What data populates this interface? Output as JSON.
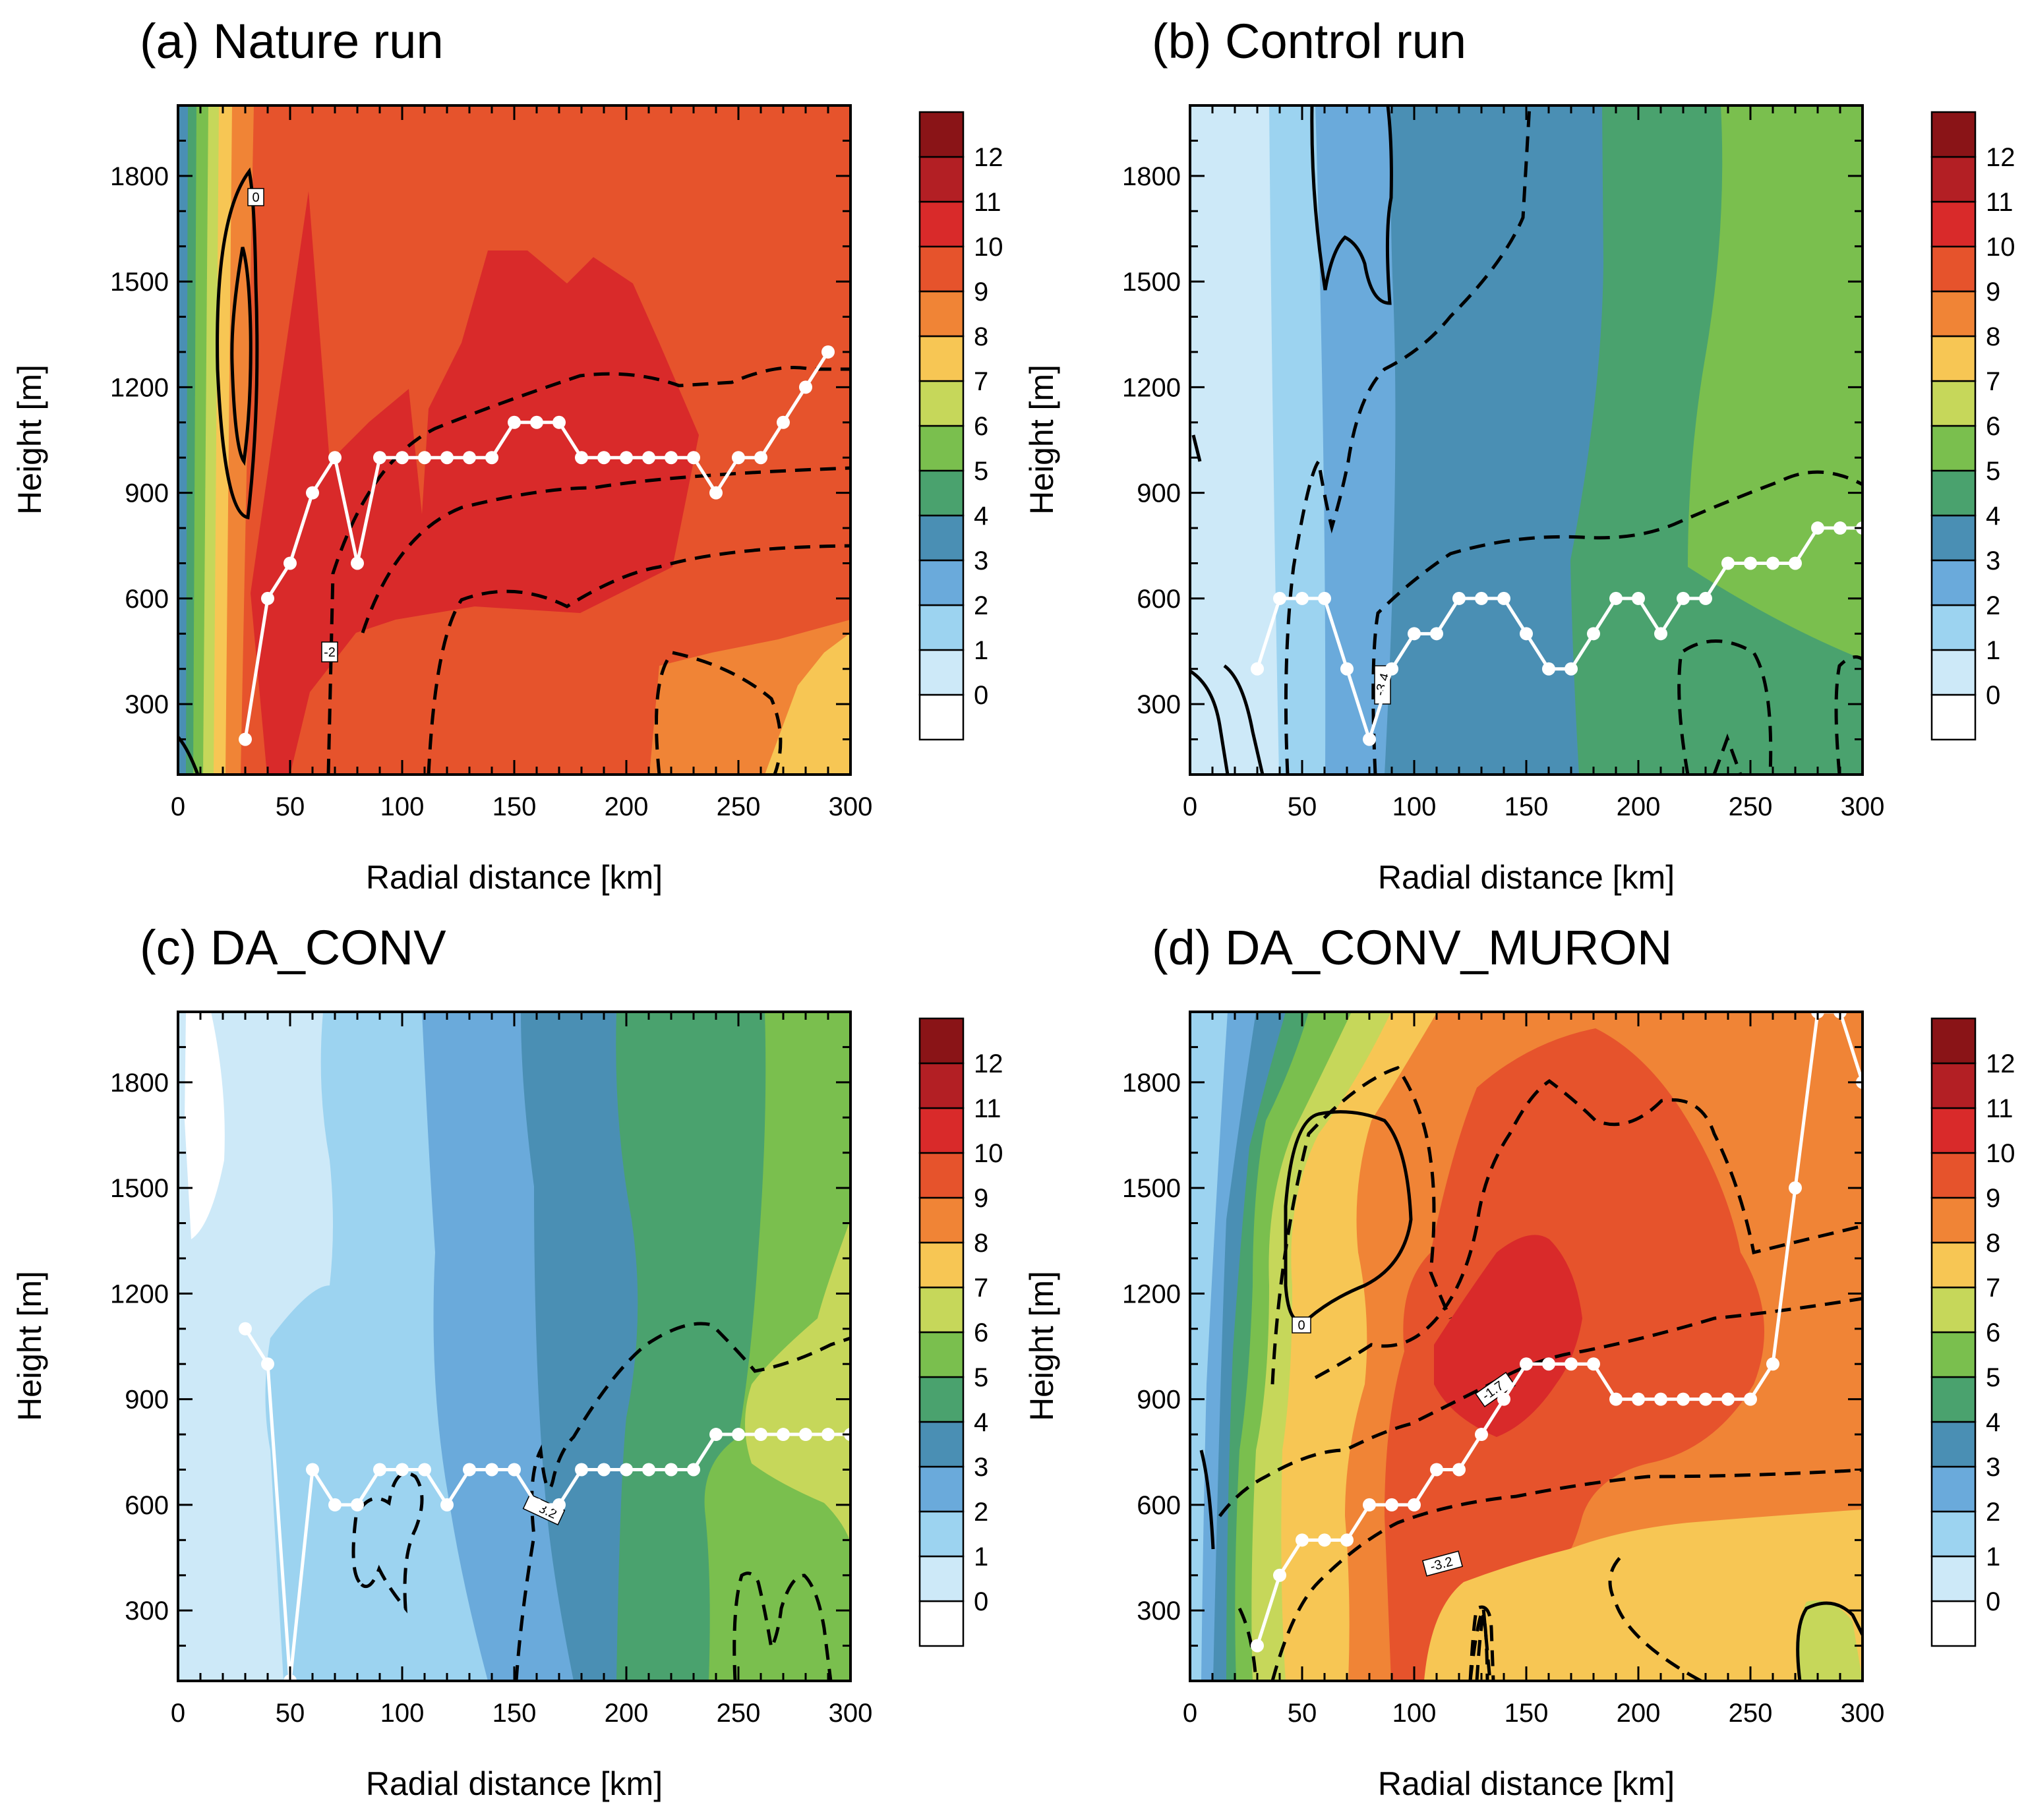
{
  "figure": {
    "colorbar_levels": [
      "0",
      "1",
      "2",
      "3",
      "4",
      "5",
      "6",
      "7",
      "8",
      "9",
      "10",
      "11",
      "12"
    ],
    "colorbar_colors": [
      "#ffffff",
      "#cde9f8",
      "#9cd3f0",
      "#6aaadb",
      "#4a8fb4",
      "#4aa26e",
      "#7abf4e",
      "#c6d75a",
      "#f7c654",
      "#f08436",
      "#e6532c",
      "#d92a2a",
      "#b31f24",
      "#8a1417"
    ]
  },
  "chart_data": [
    {
      "id": "a",
      "type": "contour",
      "title": "(a) Nature run",
      "xlabel": "Radial distance [km]",
      "ylabel": "Height [m]",
      "xlim": [
        0,
        300
      ],
      "ylim": [
        100,
        2000
      ],
      "xticks": [
        "0",
        "50",
        "100",
        "150",
        "200",
        "250",
        "300"
      ],
      "yticks": [
        "300",
        "600",
        "900",
        "1200",
        "1500",
        "1800"
      ],
      "contour_labels": [
        "0",
        "-2"
      ],
      "pbl_height_line": {
        "x": [
          30,
          40,
          50,
          60,
          70,
          80,
          90,
          100,
          110,
          120,
          130,
          140,
          150,
          160,
          170,
          180,
          190,
          200,
          210,
          220,
          230,
          240,
          250,
          260,
          270,
          280,
          290
        ],
        "y": [
          200,
          600,
          700,
          900,
          1000,
          700,
          1000,
          1000,
          1000,
          1000,
          1000,
          1000,
          1100,
          1100,
          1100,
          1000,
          1000,
          1000,
          1000,
          1000,
          1000,
          900,
          1000,
          1000,
          1100,
          1200,
          1300
        ]
      }
    },
    {
      "id": "b",
      "type": "contour",
      "title": "(b) Control run",
      "xlabel": "Radial distance [km]",
      "ylabel": "Height [m]",
      "xlim": [
        0,
        300
      ],
      "ylim": [
        100,
        2000
      ],
      "xticks": [
        "0",
        "50",
        "100",
        "150",
        "200",
        "250",
        "300"
      ],
      "yticks": [
        "300",
        "600",
        "900",
        "1200",
        "1500",
        "1800"
      ],
      "contour_labels": [
        "-3.4"
      ],
      "pbl_height_line": {
        "x": [
          30,
          40,
          50,
          60,
          70,
          80,
          90,
          100,
          110,
          120,
          130,
          140,
          150,
          160,
          170,
          180,
          190,
          200,
          210,
          220,
          230,
          240,
          250,
          260,
          270,
          280,
          290,
          300
        ],
        "y": [
          400,
          600,
          600,
          600,
          400,
          200,
          400,
          500,
          500,
          600,
          600,
          600,
          500,
          400,
          400,
          500,
          600,
          600,
          500,
          600,
          600,
          700,
          700,
          700,
          700,
          800,
          800,
          800
        ]
      }
    },
    {
      "id": "c",
      "type": "contour",
      "title": "(c) DA_CONV",
      "xlabel": "Radial distance [km]",
      "ylabel": "Height [m]",
      "xlim": [
        0,
        300
      ],
      "ylim": [
        100,
        2000
      ],
      "xticks": [
        "0",
        "50",
        "100",
        "150",
        "200",
        "250",
        "300"
      ],
      "yticks": [
        "300",
        "600",
        "900",
        "1200",
        "1500",
        "1800"
      ],
      "contour_labels": [
        "-3.2"
      ],
      "pbl_height_line": {
        "x": [
          30,
          40,
          50,
          60,
          70,
          80,
          90,
          100,
          110,
          120,
          130,
          140,
          150,
          160,
          170,
          180,
          190,
          200,
          210,
          220,
          230,
          240,
          250,
          260,
          270,
          280,
          290,
          300
        ],
        "y": [
          1100,
          1000,
          100,
          700,
          600,
          600,
          700,
          700,
          700,
          600,
          700,
          700,
          700,
          600,
          600,
          700,
          700,
          700,
          700,
          700,
          700,
          800,
          800,
          800,
          800,
          800,
          800,
          800
        ]
      }
    },
    {
      "id": "d",
      "type": "contour",
      "title": "(d) DA_CONV_MURON",
      "xlabel": "Radial distance [km]",
      "ylabel": "Height [m]",
      "xlim": [
        0,
        300
      ],
      "ylim": [
        100,
        2000
      ],
      "xticks": [
        "0",
        "50",
        "100",
        "150",
        "200",
        "250",
        "300"
      ],
      "yticks": [
        "300",
        "600",
        "900",
        "1200",
        "1500",
        "1800"
      ],
      "contour_labels": [
        "0",
        "-1.7",
        "-3.2"
      ],
      "pbl_height_line": {
        "x": [
          30,
          40,
          50,
          60,
          70,
          80,
          90,
          100,
          110,
          120,
          130,
          140,
          150,
          160,
          170,
          180,
          190,
          200,
          210,
          220,
          230,
          240,
          250,
          260,
          270,
          280,
          290,
          300
        ],
        "y": [
          200,
          400,
          500,
          500,
          500,
          600,
          600,
          600,
          700,
          700,
          800,
          900,
          1000,
          1000,
          1000,
          1000,
          900,
          900,
          900,
          900,
          900,
          900,
          900,
          1000,
          1500,
          2000,
          2000,
          1800
        ]
      }
    }
  ]
}
